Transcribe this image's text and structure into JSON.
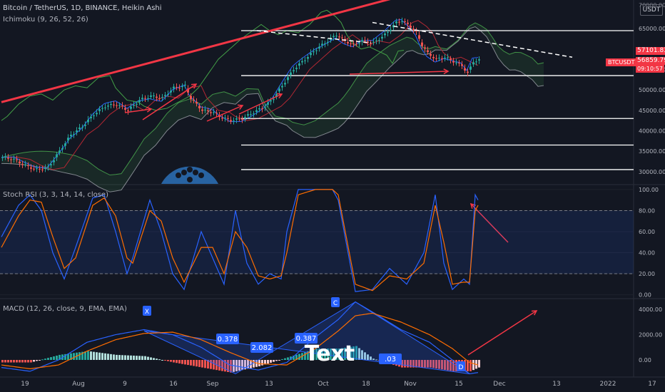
{
  "header": {
    "symbol_line": "Bitcoin / TetherUS, 1D, BINANCE, Heikin Ashi",
    "ichimoku_line": "Ichimoku (9, 26, 52, 26)",
    "currency_button": "USDT"
  },
  "colors": {
    "background": "#131722",
    "up": "#26a69a",
    "down": "#ef5350",
    "trendline": "#f23645",
    "cloud_span_a": "#4caf50",
    "cloud_span_b": "#b2b5be",
    "tenkan": "#2962ff",
    "kijun": "#b22833",
    "chikou": "#43a047",
    "stoch_k": "#2962ff",
    "stoch_d": "#ff6d00"
  },
  "price_tags": {
    "top_cut": "70000.00",
    "ask": "57101.83",
    "ticker": "BTCUSDT",
    "last": "56859.79",
    "countdown": "09:10:57"
  },
  "overlay": {
    "watermark_text": "Text",
    "macd_badges": [
      "0.378",
      "2.082",
      "0.387",
      ".03"
    ],
    "wave_points": [
      "X",
      "C",
      "D"
    ]
  },
  "chart_data": [
    {
      "id": "price",
      "type": "candlestick",
      "title": "Bitcoin / TetherUS, 1D, BINANCE, Heikin Ashi",
      "ylabel": "",
      "ylim": [
        27000,
        72000
      ],
      "y_ticks": [
        "30000.00",
        "35000.00",
        "40000.00",
        "45000.00",
        "50000.00",
        "55000.00",
        "60000.00",
        "65000.00"
      ],
      "x_ticks": [
        "19",
        "Aug",
        "9",
        "16",
        "Sep",
        "13",
        "Oct",
        "18",
        "Nov",
        "15",
        "Dec",
        "13",
        "2022",
        "17"
      ],
      "close_path": [
        [
          0,
          33500
        ],
        [
          4,
          33000
        ],
        [
          8,
          31500
        ],
        [
          12,
          30500
        ],
        [
          16,
          31000
        ],
        [
          20,
          35000
        ],
        [
          24,
          39000
        ],
        [
          28,
          41000
        ],
        [
          32,
          44000
        ],
        [
          36,
          46000
        ],
        [
          40,
          46500
        ],
        [
          44,
          45000
        ],
        [
          48,
          47500
        ],
        [
          52,
          48500
        ],
        [
          56,
          48000
        ],
        [
          60,
          50500
        ],
        [
          64,
          51000
        ],
        [
          66,
          48000
        ],
        [
          70,
          45000
        ],
        [
          74,
          44500
        ],
        [
          76,
          43500
        ],
        [
          80,
          42500
        ],
        [
          84,
          43000
        ],
        [
          88,
          44500
        ],
        [
          92,
          46000
        ],
        [
          95,
          48000
        ],
        [
          98,
          51000
        ],
        [
          102,
          55000
        ],
        [
          106,
          57500
        ],
        [
          110,
          60000
        ],
        [
          114,
          62000
        ],
        [
          117,
          63500
        ],
        [
          120,
          62000
        ],
        [
          123,
          61000
        ],
        [
          126,
          62000
        ],
        [
          130,
          61500
        ],
        [
          134,
          63500
        ],
        [
          138,
          66500
        ],
        [
          140,
          67000
        ],
        [
          143,
          65500
        ],
        [
          145,
          64000
        ],
        [
          147,
          61000
        ],
        [
          149,
          59000
        ],
        [
          152,
          57500
        ],
        [
          155,
          58000
        ],
        [
          158,
          57000
        ],
        [
          161,
          56000
        ],
        [
          163,
          54000
        ],
        [
          165,
          57000
        ],
        [
          167,
          57200
        ]
      ],
      "horizontal_levels": [
        64500,
        53500,
        43000,
        36500,
        30500
      ],
      "trendlines": [
        {
          "style": "solid",
          "points": [
            [
              0,
              47000
            ],
            [
              170,
              78500
            ]
          ]
        },
        {
          "style": "dashed",
          "points": [
            [
              130,
              66500
            ],
            [
              200,
              58000
            ]
          ]
        }
      ]
    },
    {
      "id": "stoch_rsi",
      "type": "line",
      "title": "Stoch RSI (3, 3, 14, 14, close)",
      "ylim": [
        -3,
        104
      ],
      "y_ticks": [
        "100.00",
        "80.00",
        "60.00",
        "40.00",
        "20.00",
        "0.00"
      ],
      "bands": [
        20,
        80
      ],
      "series": [
        {
          "name": "K",
          "values": [
            [
              0,
              55
            ],
            [
              6,
              85
            ],
            [
              10,
              95
            ],
            [
              14,
              80
            ],
            [
              18,
              40
            ],
            [
              22,
              15
            ],
            [
              26,
              45
            ],
            [
              32,
              92
            ],
            [
              36,
              95
            ],
            [
              40,
              60
            ],
            [
              44,
              20
            ],
            [
              46,
              35
            ],
            [
              52,
              90
            ],
            [
              56,
              60
            ],
            [
              60,
              20
            ],
            [
              64,
              5
            ],
            [
              70,
              60
            ],
            [
              74,
              35
            ],
            [
              78,
              10
            ],
            [
              82,
              80
            ],
            [
              86,
              30
            ],
            [
              90,
              10
            ],
            [
              94,
              20
            ],
            [
              98,
              15
            ],
            [
              100,
              60
            ],
            [
              104,
              100
            ],
            [
              110,
              100
            ],
            [
              116,
              100
            ],
            [
              118,
              90
            ],
            [
              124,
              3
            ],
            [
              130,
              5
            ],
            [
              136,
              25
            ],
            [
              142,
              10
            ],
            [
              148,
              40
            ],
            [
              152,
              95
            ],
            [
              155,
              30
            ],
            [
              158,
              5
            ],
            [
              162,
              15
            ],
            [
              164,
              10
            ],
            [
              166,
              95
            ],
            [
              167,
              90
            ]
          ]
        },
        {
          "name": "D",
          "values": [
            [
              0,
              45
            ],
            [
              6,
              75
            ],
            [
              10,
              90
            ],
            [
              14,
              88
            ],
            [
              18,
              55
            ],
            [
              22,
              25
            ],
            [
              26,
              35
            ],
            [
              32,
              85
            ],
            [
              36,
              92
            ],
            [
              40,
              75
            ],
            [
              44,
              35
            ],
            [
              46,
              30
            ],
            [
              52,
              80
            ],
            [
              56,
              70
            ],
            [
              60,
              35
            ],
            [
              64,
              12
            ],
            [
              70,
              45
            ],
            [
              74,
              45
            ],
            [
              78,
              20
            ],
            [
              82,
              60
            ],
            [
              86,
              45
            ],
            [
              90,
              18
            ],
            [
              94,
              15
            ],
            [
              98,
              18
            ],
            [
              100,
              40
            ],
            [
              104,
              95
            ],
            [
              110,
              100
            ],
            [
              116,
              100
            ],
            [
              118,
              95
            ],
            [
              124,
              10
            ],
            [
              130,
              4
            ],
            [
              136,
              18
            ],
            [
              142,
              15
            ],
            [
              148,
              30
            ],
            [
              152,
              85
            ],
            [
              155,
              50
            ],
            [
              158,
              10
            ],
            [
              162,
              12
            ],
            [
              164,
              12
            ],
            [
              166,
              80
            ],
            [
              167,
              85
            ]
          ]
        }
      ]
    },
    {
      "id": "macd",
      "type": "bar",
      "title": "MACD (12, 26, close, 9, EMA, EMA)",
      "ylim": [
        -1300,
        4800
      ],
      "y_ticks": [
        "4000.00",
        "2000.00",
        "0.00"
      ],
      "series": [
        {
          "name": "MACD",
          "values": [
            [
              0,
              -600
            ],
            [
              10,
              -900
            ],
            [
              20,
              0
            ],
            [
              30,
              1400
            ],
            [
              40,
              2000
            ],
            [
              50,
              2400
            ],
            [
              60,
              2000
            ],
            [
              70,
              1000
            ],
            [
              80,
              -400
            ],
            [
              90,
              -800
            ],
            [
              100,
              -200
            ],
            [
              110,
              1800
            ],
            [
              118,
              3200
            ],
            [
              124,
              4600
            ],
            [
              130,
              3800
            ],
            [
              140,
              2400
            ],
            [
              150,
              1400
            ],
            [
              158,
              0
            ],
            [
              164,
              -1100
            ],
            [
              167,
              -1000
            ]
          ]
        },
        {
          "name": "Signal",
          "values": [
            [
              0,
              -400
            ],
            [
              10,
              -700
            ],
            [
              20,
              -400
            ],
            [
              30,
              700
            ],
            [
              40,
              1600
            ],
            [
              50,
              2100
            ],
            [
              60,
              2200
            ],
            [
              70,
              1600
            ],
            [
              80,
              600
            ],
            [
              90,
              -300
            ],
            [
              100,
              -400
            ],
            [
              110,
              900
            ],
            [
              118,
              2300
            ],
            [
              124,
              3500
            ],
            [
              130,
              3700
            ],
            [
              140,
              3000
            ],
            [
              150,
              2000
            ],
            [
              158,
              900
            ],
            [
              164,
              -200
            ],
            [
              167,
              -400
            ]
          ]
        }
      ]
    }
  ]
}
